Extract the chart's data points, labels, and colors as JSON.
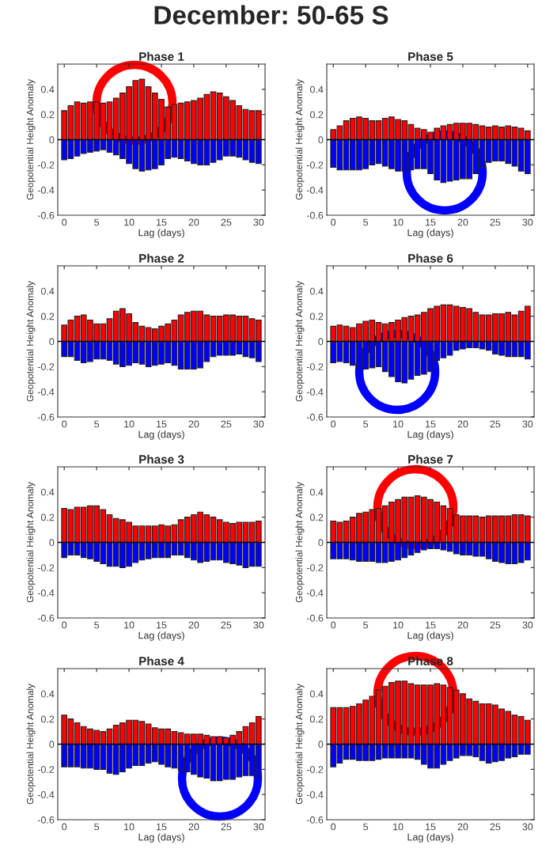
{
  "chart_data": [
    {
      "type": "other",
      "title": "December: 50-65 S"
    },
    {
      "type": "bar",
      "stacked": true,
      "title": "Phase 1",
      "xlabel": "Lag (days)",
      "ylabel": "Geopotential Height Anomaly",
      "xlim": [
        -1,
        31
      ],
      "xticks": [
        0,
        5,
        10,
        15,
        20,
        25,
        30
      ],
      "ylim": [
        -0.6,
        0.6
      ],
      "yticks": [
        -0.6,
        -0.4,
        -0.2,
        0,
        0.2,
        0.4
      ],
      "grid": false,
      "ref_lines": [
        {
          "axis": "y",
          "value": 0,
          "color": "#000000"
        }
      ],
      "x": [
        0,
        1,
        2,
        3,
        4,
        5,
        6,
        7,
        8,
        9,
        10,
        11,
        12,
        13,
        14,
        15,
        16,
        17,
        18,
        19,
        20,
        21,
        22,
        23,
        24,
        25,
        26,
        27,
        28,
        29,
        30
      ],
      "series": [
        {
          "color": "#ff0000",
          "values": [
            0.23,
            0.27,
            0.3,
            0.29,
            0.3,
            0.3,
            0.29,
            0.3,
            0.33,
            0.37,
            0.42,
            0.47,
            0.48,
            0.42,
            0.37,
            0.32,
            0.26,
            0.28,
            0.29,
            0.3,
            0.31,
            0.33,
            0.36,
            0.38,
            0.37,
            0.34,
            0.31,
            0.27,
            0.24,
            0.23,
            0.23
          ]
        },
        {
          "color": "#0000ff",
          "values": [
            -0.16,
            -0.15,
            -0.13,
            -0.11,
            -0.1,
            -0.09,
            -0.08,
            -0.1,
            -0.12,
            -0.15,
            -0.19,
            -0.23,
            -0.25,
            -0.24,
            -0.23,
            -0.2,
            -0.15,
            -0.14,
            -0.15,
            -0.17,
            -0.19,
            -0.2,
            -0.2,
            -0.18,
            -0.16,
            -0.13,
            -0.13,
            -0.14,
            -0.16,
            -0.18,
            -0.19
          ]
        }
      ]
    },
    {
      "type": "bar",
      "stacked": true,
      "title": "Phase 5",
      "xlabel": "Lag (days)",
      "ylabel": "Geopotential Height Anomaly",
      "xlim": [
        -1,
        31
      ],
      "xticks": [
        0,
        5,
        10,
        15,
        20,
        25,
        30
      ],
      "ylim": [
        -0.6,
        0.6
      ],
      "yticks": [
        -0.6,
        -0.4,
        -0.2,
        0,
        0.2,
        0.4
      ],
      "grid": false,
      "ref_lines": [
        {
          "axis": "y",
          "value": 0,
          "color": "#000000"
        }
      ],
      "x": [
        0,
        1,
        2,
        3,
        4,
        5,
        6,
        7,
        8,
        9,
        10,
        11,
        12,
        13,
        14,
        15,
        16,
        17,
        18,
        19,
        20,
        21,
        22,
        23,
        24,
        25,
        26,
        27,
        28,
        29,
        30
      ],
      "series": [
        {
          "color": "#ff0000",
          "values": [
            0.08,
            0.11,
            0.15,
            0.17,
            0.18,
            0.17,
            0.15,
            0.15,
            0.17,
            0.18,
            0.16,
            0.15,
            0.12,
            0.09,
            0.08,
            0.06,
            0.09,
            0.11,
            0.12,
            0.13,
            0.13,
            0.13,
            0.12,
            0.11,
            0.1,
            0.11,
            0.1,
            0.11,
            0.1,
            0.09,
            0.07
          ]
        },
        {
          "color": "#0000ff",
          "values": [
            -0.22,
            -0.24,
            -0.24,
            -0.24,
            -0.24,
            -0.23,
            -0.2,
            -0.19,
            -0.21,
            -0.23,
            -0.25,
            -0.25,
            -0.24,
            -0.23,
            -0.23,
            -0.27,
            -0.32,
            -0.34,
            -0.33,
            -0.32,
            -0.31,
            -0.31,
            -0.27,
            -0.22,
            -0.18,
            -0.17,
            -0.17,
            -0.19,
            -0.21,
            -0.25,
            -0.27
          ]
        }
      ]
    },
    {
      "type": "bar",
      "stacked": true,
      "title": "Phase 2",
      "xlabel": "Lag (days)",
      "ylabel": "Geopotential Height Anomaly",
      "xlim": [
        -1,
        31
      ],
      "xticks": [
        0,
        5,
        10,
        15,
        20,
        25,
        30
      ],
      "ylim": [
        -0.6,
        0.6
      ],
      "yticks": [
        -0.6,
        -0.4,
        -0.2,
        0,
        0.2,
        0.4
      ],
      "grid": false,
      "ref_lines": [
        {
          "axis": "y",
          "value": 0,
          "color": "#000000"
        }
      ],
      "x": [
        0,
        1,
        2,
        3,
        4,
        5,
        6,
        7,
        8,
        9,
        10,
        11,
        12,
        13,
        14,
        15,
        16,
        17,
        18,
        19,
        20,
        21,
        22,
        23,
        24,
        25,
        26,
        27,
        28,
        29,
        30
      ],
      "series": [
        {
          "color": "#ff0000",
          "values": [
            0.13,
            0.17,
            0.2,
            0.21,
            0.17,
            0.14,
            0.14,
            0.18,
            0.24,
            0.26,
            0.22,
            0.15,
            0.12,
            0.11,
            0.1,
            0.12,
            0.14,
            0.17,
            0.21,
            0.23,
            0.24,
            0.24,
            0.21,
            0.2,
            0.2,
            0.21,
            0.21,
            0.2,
            0.2,
            0.18,
            0.17
          ]
        },
        {
          "color": "#0000ff",
          "values": [
            -0.12,
            -0.12,
            -0.15,
            -0.17,
            -0.16,
            -0.14,
            -0.14,
            -0.15,
            -0.18,
            -0.2,
            -0.19,
            -0.17,
            -0.18,
            -0.2,
            -0.19,
            -0.18,
            -0.17,
            -0.19,
            -0.22,
            -0.22,
            -0.22,
            -0.21,
            -0.16,
            -0.12,
            -0.11,
            -0.11,
            -0.11,
            -0.1,
            -0.12,
            -0.13,
            -0.16
          ]
        }
      ]
    },
    {
      "type": "bar",
      "stacked": true,
      "title": "Phase 6",
      "xlabel": "Lag (days)",
      "ylabel": "Geopotential Height Anomaly",
      "xlim": [
        -1,
        31
      ],
      "xticks": [
        0,
        5,
        10,
        15,
        20,
        25,
        30
      ],
      "ylim": [
        -0.6,
        0.6
      ],
      "yticks": [
        -0.6,
        -0.4,
        -0.2,
        0,
        0.2,
        0.4
      ],
      "grid": false,
      "ref_lines": [
        {
          "axis": "y",
          "value": 0,
          "color": "#000000"
        }
      ],
      "x": [
        0,
        1,
        2,
        3,
        4,
        5,
        6,
        7,
        8,
        9,
        10,
        11,
        12,
        13,
        14,
        15,
        16,
        17,
        18,
        19,
        20,
        21,
        22,
        23,
        24,
        25,
        26,
        27,
        28,
        29,
        30
      ],
      "series": [
        {
          "color": "#ff0000",
          "values": [
            0.12,
            0.13,
            0.12,
            0.11,
            0.14,
            0.16,
            0.17,
            0.15,
            0.14,
            0.15,
            0.17,
            0.19,
            0.2,
            0.21,
            0.23,
            0.26,
            0.28,
            0.29,
            0.29,
            0.28,
            0.27,
            0.26,
            0.23,
            0.21,
            0.21,
            0.22,
            0.22,
            0.23,
            0.21,
            0.24,
            0.28
          ]
        },
        {
          "color": "#0000ff",
          "values": [
            -0.17,
            -0.16,
            -0.17,
            -0.19,
            -0.21,
            -0.22,
            -0.21,
            -0.2,
            -0.24,
            -0.28,
            -0.32,
            -0.33,
            -0.3,
            -0.27,
            -0.26,
            -0.24,
            -0.15,
            -0.13,
            -0.11,
            -0.07,
            -0.06,
            -0.05,
            -0.05,
            -0.06,
            -0.07,
            -0.1,
            -0.11,
            -0.12,
            -0.12,
            -0.12,
            -0.14
          ]
        }
      ]
    },
    {
      "type": "bar",
      "stacked": true,
      "title": "Phase 3",
      "xlabel": "Lag (days)",
      "ylabel": "Geopotential Height Anomaly",
      "xlim": [
        -1,
        31
      ],
      "xticks": [
        0,
        5,
        10,
        15,
        20,
        25,
        30
      ],
      "ylim": [
        -0.6,
        0.6
      ],
      "yticks": [
        -0.6,
        -0.4,
        -0.2,
        0,
        0.2,
        0.4
      ],
      "grid": false,
      "ref_lines": [
        {
          "axis": "y",
          "value": 0,
          "color": "#000000"
        }
      ],
      "x": [
        0,
        1,
        2,
        3,
        4,
        5,
        6,
        7,
        8,
        9,
        10,
        11,
        12,
        13,
        14,
        15,
        16,
        17,
        18,
        19,
        20,
        21,
        22,
        23,
        24,
        25,
        26,
        27,
        28,
        29,
        30
      ],
      "series": [
        {
          "color": "#ff0000",
          "values": [
            0.27,
            0.26,
            0.28,
            0.28,
            0.29,
            0.29,
            0.26,
            0.22,
            0.19,
            0.18,
            0.16,
            0.13,
            0.13,
            0.13,
            0.13,
            0.14,
            0.13,
            0.14,
            0.18,
            0.2,
            0.22,
            0.24,
            0.22,
            0.2,
            0.18,
            0.16,
            0.15,
            0.16,
            0.16,
            0.16,
            0.17
          ]
        },
        {
          "color": "#0000ff",
          "values": [
            -0.12,
            -0.1,
            -0.1,
            -0.12,
            -0.13,
            -0.15,
            -0.17,
            -0.19,
            -0.19,
            -0.2,
            -0.19,
            -0.16,
            -0.14,
            -0.13,
            -0.12,
            -0.12,
            -0.12,
            -0.1,
            -0.1,
            -0.12,
            -0.14,
            -0.16,
            -0.15,
            -0.14,
            -0.14,
            -0.16,
            -0.17,
            -0.18,
            -0.2,
            -0.19,
            -0.19
          ]
        }
      ]
    },
    {
      "type": "bar",
      "stacked": true,
      "title": "Phase 7",
      "xlabel": "Lag (days)",
      "ylabel": "Geopotential Height Anomaly",
      "xlim": [
        -1,
        31
      ],
      "xticks": [
        0,
        5,
        10,
        15,
        20,
        25,
        30
      ],
      "ylim": [
        -0.6,
        0.6
      ],
      "yticks": [
        -0.6,
        -0.4,
        -0.2,
        0,
        0.2,
        0.4
      ],
      "grid": false,
      "ref_lines": [
        {
          "axis": "y",
          "value": 0,
          "color": "#000000"
        }
      ],
      "x": [
        0,
        1,
        2,
        3,
        4,
        5,
        6,
        7,
        8,
        9,
        10,
        11,
        12,
        13,
        14,
        15,
        16,
        17,
        18,
        19,
        20,
        21,
        22,
        23,
        24,
        25,
        26,
        27,
        28,
        29,
        30
      ],
      "series": [
        {
          "color": "#ff0000",
          "values": [
            0.17,
            0.16,
            0.17,
            0.2,
            0.23,
            0.24,
            0.26,
            0.27,
            0.29,
            0.32,
            0.34,
            0.36,
            0.36,
            0.37,
            0.36,
            0.34,
            0.32,
            0.29,
            0.27,
            0.22,
            0.21,
            0.21,
            0.21,
            0.2,
            0.21,
            0.21,
            0.21,
            0.21,
            0.22,
            0.22,
            0.21
          ]
        },
        {
          "color": "#0000ff",
          "values": [
            -0.13,
            -0.13,
            -0.13,
            -0.14,
            -0.15,
            -0.15,
            -0.15,
            -0.16,
            -0.16,
            -0.15,
            -0.14,
            -0.12,
            -0.1,
            -0.08,
            -0.06,
            -0.05,
            -0.05,
            -0.06,
            -0.07,
            -0.09,
            -0.1,
            -0.1,
            -0.11,
            -0.11,
            -0.13,
            -0.15,
            -0.16,
            -0.17,
            -0.17,
            -0.16,
            -0.14
          ]
        }
      ]
    },
    {
      "type": "bar",
      "stacked": true,
      "title": "Phase 4",
      "xlabel": "Lag (days)",
      "ylabel": "Geopotential Height Anomaly",
      "xlim": [
        -1,
        31
      ],
      "xticks": [
        0,
        5,
        10,
        15,
        20,
        25,
        30
      ],
      "ylim": [
        -0.6,
        0.6
      ],
      "yticks": [
        -0.6,
        -0.4,
        -0.2,
        0,
        0.2,
        0.4
      ],
      "grid": false,
      "ref_lines": [
        {
          "axis": "y",
          "value": 0,
          "color": "#000000"
        }
      ],
      "x": [
        0,
        1,
        2,
        3,
        4,
        5,
        6,
        7,
        8,
        9,
        10,
        11,
        12,
        13,
        14,
        15,
        16,
        17,
        18,
        19,
        20,
        21,
        22,
        23,
        24,
        25,
        26,
        27,
        28,
        29,
        30
      ],
      "series": [
        {
          "color": "#ff0000",
          "values": [
            0.23,
            0.2,
            0.17,
            0.14,
            0.12,
            0.11,
            0.1,
            0.12,
            0.15,
            0.17,
            0.19,
            0.19,
            0.18,
            0.16,
            0.13,
            0.12,
            0.12,
            0.1,
            0.09,
            0.08,
            0.08,
            0.08,
            0.07,
            0.06,
            0.06,
            0.05,
            0.07,
            0.1,
            0.14,
            0.17,
            0.22
          ]
        },
        {
          "color": "#0000ff",
          "values": [
            -0.18,
            -0.18,
            -0.18,
            -0.19,
            -0.19,
            -0.2,
            -0.2,
            -0.23,
            -0.24,
            -0.22,
            -0.19,
            -0.17,
            -0.17,
            -0.15,
            -0.14,
            -0.16,
            -0.18,
            -0.19,
            -0.21,
            -0.22,
            -0.24,
            -0.26,
            -0.27,
            -0.29,
            -0.29,
            -0.28,
            -0.28,
            -0.26,
            -0.25,
            -0.25,
            -0.26
          ]
        }
      ]
    },
    {
      "type": "bar",
      "stacked": true,
      "title": "Phase 8",
      "xlabel": "Lag (days)",
      "ylabel": "Geopotential Height Anomaly",
      "xlim": [
        -1,
        31
      ],
      "xticks": [
        0,
        5,
        10,
        15,
        20,
        25,
        30
      ],
      "ylim": [
        -0.6,
        0.6
      ],
      "yticks": [
        -0.6,
        -0.4,
        -0.2,
        0,
        0.2,
        0.4
      ],
      "grid": false,
      "ref_lines": [
        {
          "axis": "y",
          "value": 0,
          "color": "#000000"
        }
      ],
      "x": [
        0,
        1,
        2,
        3,
        4,
        5,
        6,
        7,
        8,
        9,
        10,
        11,
        12,
        13,
        14,
        15,
        16,
        17,
        18,
        19,
        20,
        21,
        22,
        23,
        24,
        25,
        26,
        27,
        28,
        29,
        30
      ],
      "series": [
        {
          "color": "#ff0000",
          "values": [
            0.29,
            0.29,
            0.29,
            0.3,
            0.32,
            0.35,
            0.38,
            0.43,
            0.46,
            0.49,
            0.5,
            0.5,
            0.48,
            0.47,
            0.47,
            0.47,
            0.48,
            0.47,
            0.45,
            0.43,
            0.4,
            0.36,
            0.34,
            0.32,
            0.32,
            0.31,
            0.28,
            0.26,
            0.23,
            0.22,
            0.19
          ]
        },
        {
          "color": "#0000ff",
          "values": [
            -0.18,
            -0.15,
            -0.12,
            -0.12,
            -0.13,
            -0.13,
            -0.13,
            -0.12,
            -0.11,
            -0.11,
            -0.11,
            -0.11,
            -0.11,
            -0.12,
            -0.16,
            -0.19,
            -0.19,
            -0.16,
            -0.13,
            -0.11,
            -0.09,
            -0.09,
            -0.1,
            -0.13,
            -0.15,
            -0.14,
            -0.13,
            -0.11,
            -0.1,
            -0.08,
            -0.08
          ]
        }
      ]
    }
  ]
}
